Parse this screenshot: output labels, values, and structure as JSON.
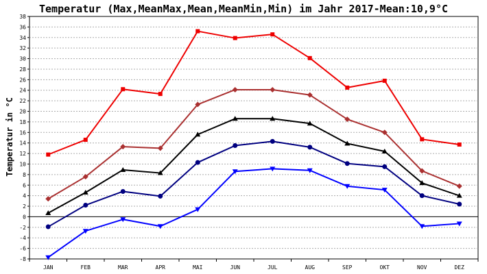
{
  "chart_data": {
    "type": "line",
    "title": "Temperatur (Max,MeanMax,Mean,MeanMin,Min) im Jahr 2017-Mean:10,9°C",
    "ylabel": "Temperatur in °C",
    "xlabel": "",
    "categories": [
      "JAN",
      "FEB",
      "MAR",
      "APR",
      "MAI",
      "JUN",
      "JUL",
      "AUG",
      "SEP",
      "OKT",
      "NOV",
      "DEZ"
    ],
    "ylim": [
      -8,
      38
    ],
    "yticks": [
      -8,
      -6,
      -4,
      -2,
      0,
      2,
      4,
      6,
      8,
      10,
      12,
      14,
      16,
      18,
      20,
      22,
      24,
      26,
      28,
      30,
      32,
      34,
      36,
      38
    ],
    "grid": true,
    "series": [
      {
        "key": "max",
        "color": "#ee0000",
        "marker": "square",
        "values": [
          11.8,
          14.6,
          24.2,
          23.3,
          35.2,
          33.9,
          34.6,
          30.1,
          24.5,
          25.8,
          14.7,
          13.7
        ]
      },
      {
        "key": "meanmax",
        "color": "#aa3030",
        "marker": "diamond",
        "values": [
          3.4,
          7.6,
          13.3,
          13.0,
          21.3,
          24.1,
          24.1,
          23.1,
          18.5,
          16.0,
          8.7,
          5.8
        ]
      },
      {
        "key": "mean",
        "color": "#000000",
        "marker": "triangle-up",
        "values": [
          0.7,
          4.6,
          8.9,
          8.3,
          15.6,
          18.6,
          18.6,
          17.7,
          13.9,
          12.4,
          6.4,
          4.0
        ]
      },
      {
        "key": "meanmin",
        "color": "#000080",
        "marker": "circle",
        "values": [
          -1.9,
          2.2,
          4.8,
          3.9,
          10.3,
          13.5,
          14.3,
          13.2,
          10.1,
          9.5,
          4.0,
          2.4
        ]
      },
      {
        "key": "min",
        "color": "#0000ff",
        "marker": "triangle-down",
        "values": [
          -7.7,
          -2.7,
          -0.5,
          -1.8,
          1.4,
          8.6,
          9.1,
          8.8,
          5.8,
          5.1,
          -1.8,
          -1.3
        ]
      }
    ]
  }
}
